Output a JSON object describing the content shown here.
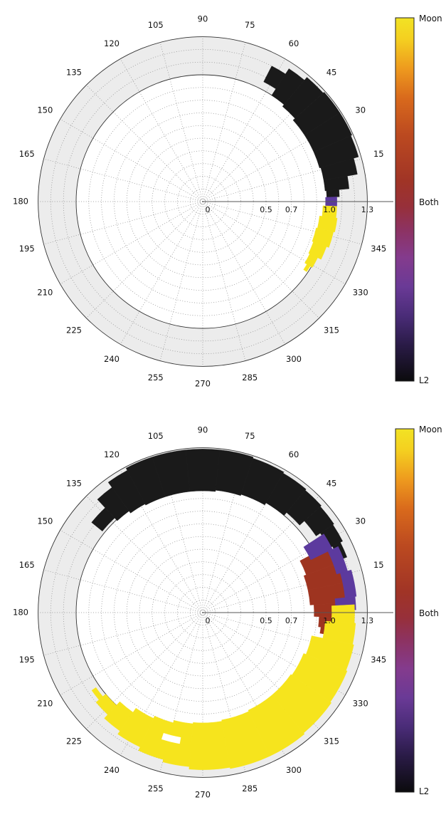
{
  "figure": {
    "background": "#ffffff",
    "colorbar": {
      "labels": {
        "top": "Moon",
        "middle": "Both",
        "bottom": "L2"
      },
      "stops": [
        {
          "o": 0.0,
          "c": "#f2e324"
        },
        {
          "o": 0.06,
          "c": "#f4cf20"
        },
        {
          "o": 0.14,
          "c": "#ee9a1e"
        },
        {
          "o": 0.22,
          "c": "#d96a1c"
        },
        {
          "o": 0.32,
          "c": "#bc4a20"
        },
        {
          "o": 0.45,
          "c": "#a03426"
        },
        {
          "o": 0.52,
          "c": "#97303a"
        },
        {
          "o": 0.58,
          "c": "#8d3260"
        },
        {
          "o": 0.66,
          "c": "#843b8d"
        },
        {
          "o": 0.74,
          "c": "#6a3a96"
        },
        {
          "o": 0.82,
          "c": "#4a2c78"
        },
        {
          "o": 0.9,
          "c": "#2a1b47"
        },
        {
          "o": 1.0,
          "c": "#0b0b0d"
        }
      ]
    }
  },
  "chart_data": [
    {
      "type": "heatmap",
      "projection": "polar",
      "title": "",
      "position": "top",
      "angle_tick_labels": [
        "15",
        "30",
        "45",
        "60",
        "75",
        "90",
        "105",
        "120",
        "135",
        "150",
        "165",
        "180",
        "195",
        "210",
        "225",
        "240",
        "255",
        "270",
        "285",
        "300",
        "315",
        "330",
        "345"
      ],
      "angle_tick_step_deg": 15,
      "radial_ticks": [
        {
          "value": 0,
          "label": "0"
        },
        {
          "value": 0.5,
          "label": "0.5"
        },
        {
          "value": 0.7,
          "label": "0.7"
        },
        {
          "value": 1.0,
          "label": "1.0"
        },
        {
          "value": 1.3,
          "label": "1.3"
        }
      ],
      "r_max": 1.3,
      "annulus": {
        "inner": 1.0,
        "outer": 1.3,
        "color": "#ececec"
      },
      "grid": {
        "dotted_circles": [
          0.1,
          0.2,
          0.3,
          0.4,
          0.5,
          0.6,
          0.7,
          0.8,
          0.9,
          1.1,
          1.2
        ],
        "solid_circles": [
          1.0,
          1.3
        ],
        "spoke_step_deg": 15
      },
      "legend": {
        "position": "right-colorbar",
        "entries": [
          "Moon",
          "Both",
          "L2"
        ]
      },
      "regions": [
        {
          "name": "l2-blocked",
          "color": "#1a1a1a",
          "segments": [
            [
              63,
              57,
              1.06,
              1.2
            ],
            [
              57,
              50,
              1.0,
              1.25
            ],
            [
              50,
              42,
              0.98,
              1.28
            ],
            [
              42,
              33,
              0.96,
              1.29
            ],
            [
              33,
              24,
              0.96,
              1.29
            ],
            [
              24,
              16,
              0.96,
              1.28
            ],
            [
              16,
              10,
              0.97,
              1.24
            ],
            [
              10,
              5,
              0.97,
              1.16
            ],
            [
              5,
              2,
              0.98,
              1.08
            ]
          ]
        },
        {
          "name": "both-blocked",
          "color": "#5c3a9e",
          "segments": [
            [
              2,
              -2,
              0.97,
              1.06
            ]
          ]
        },
        {
          "name": "moon-blocked",
          "color": "#f6e41d",
          "segments": [
            [
              -2,
              -7,
              0.95,
              1.06
            ],
            [
              -7,
              -13,
              0.93,
              1.07
            ],
            [
              -13,
              -20,
              0.92,
              1.06
            ],
            [
              -20,
              -26,
              0.93,
              1.04
            ],
            [
              -26,
              -31,
              0.94,
              1.01
            ],
            [
              -31,
              -34,
              0.96,
              0.99
            ]
          ]
        }
      ]
    },
    {
      "type": "heatmap",
      "projection": "polar",
      "title": "",
      "position": "bottom",
      "angle_tick_labels": [
        "15",
        "30",
        "45",
        "60",
        "75",
        "90",
        "105",
        "120",
        "135",
        "150",
        "165",
        "180",
        "195",
        "210",
        "225",
        "240",
        "255",
        "270",
        "285",
        "300",
        "315",
        "330",
        "345"
      ],
      "angle_tick_step_deg": 15,
      "radial_ticks": [
        {
          "value": 0,
          "label": "0"
        },
        {
          "value": 0.5,
          "label": "0.5"
        },
        {
          "value": 0.7,
          "label": "0.7"
        },
        {
          "value": 1.0,
          "label": "1.0"
        },
        {
          "value": 1.3,
          "label": "1.3"
        }
      ],
      "r_max": 1.3,
      "annulus": {
        "inner": 1.0,
        "outer": 1.3,
        "color": "#ececec"
      },
      "grid": {
        "dotted_circles": [
          0.1,
          0.2,
          0.3,
          0.4,
          0.5,
          0.6,
          0.7,
          0.8,
          0.9,
          1.1,
          1.2
        ],
        "solid_circles": [
          1.0,
          1.3
        ],
        "spoke_step_deg": 15
      },
      "legend": {
        "position": "right-colorbar",
        "entries": [
          "Moon",
          "Both",
          "L2"
        ]
      },
      "regions": [
        {
          "name": "l2-blocked",
          "color": "#1a1a1a",
          "segments": [
            [
              141,
              133,
              1.02,
              1.13
            ],
            [
              133,
              126,
              0.99,
              1.22
            ],
            [
              126,
              118,
              0.97,
              1.27
            ],
            [
              118,
              108,
              0.96,
              1.29
            ],
            [
              108,
              96,
              0.96,
              1.29
            ],
            [
              96,
              84,
              0.96,
              1.29
            ],
            [
              84,
              72,
              0.97,
              1.29
            ],
            [
              72,
              60,
              0.98,
              1.28
            ],
            [
              60,
              50,
              1.0,
              1.27
            ],
            [
              50,
              42,
              1.03,
              1.26
            ],
            [
              42,
              34,
              1.08,
              1.25
            ],
            [
              34,
              27,
              1.12,
              1.24
            ],
            [
              27,
              21,
              1.15,
              1.22
            ]
          ]
        },
        {
          "name": "both-blocked-red",
          "color": "#9e3420",
          "segments": [
            [
              28,
              20,
              0.87,
              1.12
            ],
            [
              20,
              12,
              0.85,
              1.16
            ],
            [
              12,
              4,
              0.85,
              1.16
            ],
            [
              4,
              -2,
              0.88,
              1.1
            ],
            [
              -2,
              -7,
              0.92,
              1.02
            ],
            [
              -7,
              -10,
              0.94,
              0.98
            ]
          ]
        },
        {
          "name": "both-blocked-purple",
          "color": "#5c3a9e",
          "segments": [
            [
              33,
              26,
              0.95,
              1.14
            ],
            [
              26,
              16,
              1.1,
              1.19
            ],
            [
              16,
              6,
              1.13,
              1.22
            ],
            [
              6,
              1,
              1.05,
              1.21
            ]
          ]
        },
        {
          "name": "moon-blocked",
          "color": "#f6e41d",
          "segments": [
            [
              3,
              -4,
              1.02,
              1.2
            ],
            [
              -4,
              -12,
              0.97,
              1.21
            ],
            [
              -12,
              -22,
              0.88,
              1.22
            ],
            [
              -22,
              -35,
              0.86,
              1.23
            ],
            [
              -35,
              -50,
              0.85,
              1.24
            ],
            [
              -50,
              -65,
              0.85,
              1.25
            ],
            [
              -65,
              -80,
              0.86,
              1.25
            ],
            [
              -80,
              -95,
              0.87,
              1.24
            ],
            [
              -95,
              -105,
              0.88,
              1.22
            ],
            [
              -105,
              -115,
              0.9,
              1.2
            ],
            [
              -115,
              -125,
              0.92,
              1.17
            ],
            [
              -125,
              -133,
              0.96,
              1.14
            ],
            [
              -133,
              -140,
              1.0,
              1.1
            ],
            [
              -140,
              -145,
              1.03,
              1.07
            ]
          ]
        },
        {
          "name": "gap-white",
          "color": "#ffffff",
          "segments": [
            [
              -100,
              -108,
              1.0,
              1.05
            ]
          ]
        }
      ]
    }
  ]
}
